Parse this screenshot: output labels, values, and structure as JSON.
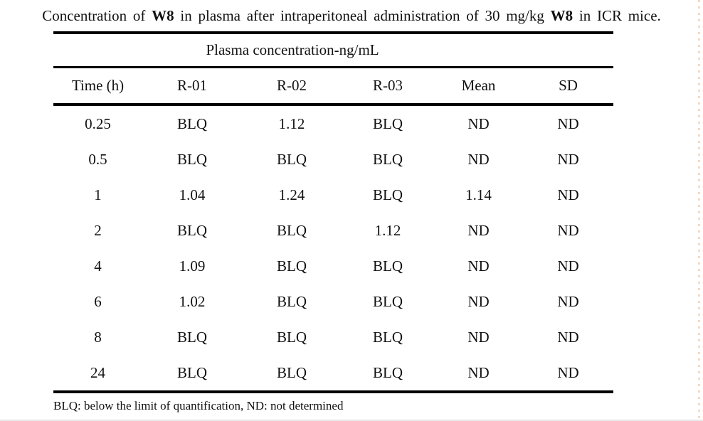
{
  "title": {
    "part1": "Concentration of ",
    "bold1": "W8",
    "part2": " in plasma after intraperitoneal administration of 30 mg/kg ",
    "bold2": "W8",
    "part3": " in ICR mice."
  },
  "table": {
    "caption": "Plasma concentration-ng/mL",
    "columns": [
      "Time (h)",
      "R-01",
      "R-02",
      "R-03",
      "Mean",
      "SD"
    ],
    "rows": [
      [
        "0.25",
        "BLQ",
        "1.12",
        "BLQ",
        "ND",
        "ND"
      ],
      [
        "0.5",
        "BLQ",
        "BLQ",
        "BLQ",
        "ND",
        "ND"
      ],
      [
        "1",
        "1.04",
        "1.24",
        "BLQ",
        "1.14",
        "ND"
      ],
      [
        "2",
        "BLQ",
        "BLQ",
        "1.12",
        "ND",
        "ND"
      ],
      [
        "4",
        "1.09",
        "BLQ",
        "BLQ",
        "ND",
        "ND"
      ],
      [
        "6",
        "1.02",
        "BLQ",
        "BLQ",
        "ND",
        "ND"
      ],
      [
        "8",
        "BLQ",
        "BLQ",
        "BLQ",
        "ND",
        "ND"
      ],
      [
        "24",
        "BLQ",
        "BLQ",
        "BLQ",
        "ND",
        "ND"
      ]
    ],
    "footnote": "BLQ: below the limit of quantification, ND: not determined"
  },
  "colors": {
    "text": "#111111",
    "rule": "#000000",
    "background": "#ffffff",
    "edge_artifact": "#e6ac78"
  }
}
